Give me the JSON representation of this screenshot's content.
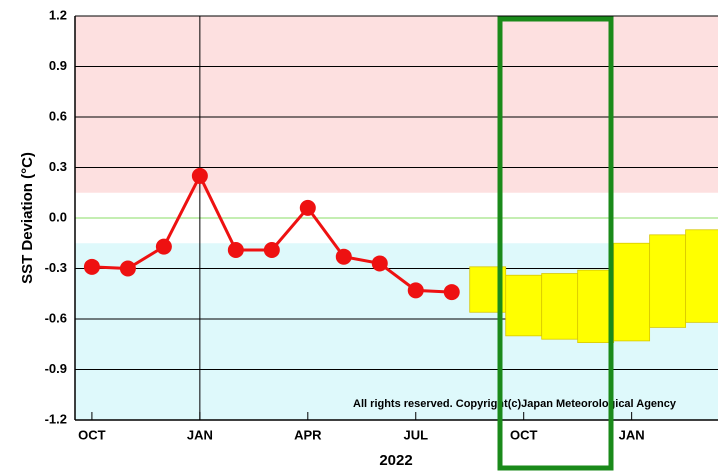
{
  "chart_data": {
    "type": "line",
    "ylabel": "SST Deviation (°C)",
    "xlabel": "2022",
    "annotation": "All rights reserved. Copyright(c)Japan Meteorological Agency",
    "x": [
      0,
      1,
      2,
      3,
      4,
      5,
      6,
      7,
      8,
      9,
      10
    ],
    "series": [
      {
        "color": "#ee1111",
        "values": [
          -0.29,
          -0.3,
          -0.17,
          0.25,
          -0.19,
          -0.19,
          0.06,
          -0.23,
          -0.27,
          -0.43,
          -0.44
        ]
      }
    ],
    "forecast": {
      "x": [
        11,
        12,
        13,
        14,
        15,
        16,
        17
      ],
      "low": [
        -0.56,
        -0.7,
        -0.72,
        -0.74,
        -0.73,
        -0.65,
        -0.62
      ],
      "high": [
        -0.29,
        -0.34,
        -0.33,
        -0.31,
        -0.15,
        -0.1,
        -0.07
      ],
      "color": "#ffff00"
    },
    "bands": [
      {
        "from": 0.15,
        "to": 1.2,
        "color": "#fde0e0"
      },
      {
        "from": -1.2,
        "to": -0.15,
        "color": "#def9fb"
      }
    ],
    "zero_line_color": "#88dd66",
    "xlim": [
      -0.47,
      17.4
    ],
    "xticks": [
      {
        "value": 0,
        "label": "OCT"
      },
      {
        "value": 3,
        "label": "JAN"
      },
      {
        "value": 6,
        "label": "APR"
      },
      {
        "value": 9,
        "label": "JUL"
      },
      {
        "value": 12,
        "label": "OCT"
      },
      {
        "value": 15,
        "label": "JAN"
      }
    ],
    "xgrid_at": [
      3
    ],
    "ylim": [
      -1.2,
      1.2
    ],
    "yticks": [
      1.2,
      0.9,
      0.6,
      0.3,
      {
        "value": 0,
        "label": "0.0"
      },
      -0.3,
      -0.6,
      -0.9,
      -1.2
    ],
    "grid": true
  }
}
